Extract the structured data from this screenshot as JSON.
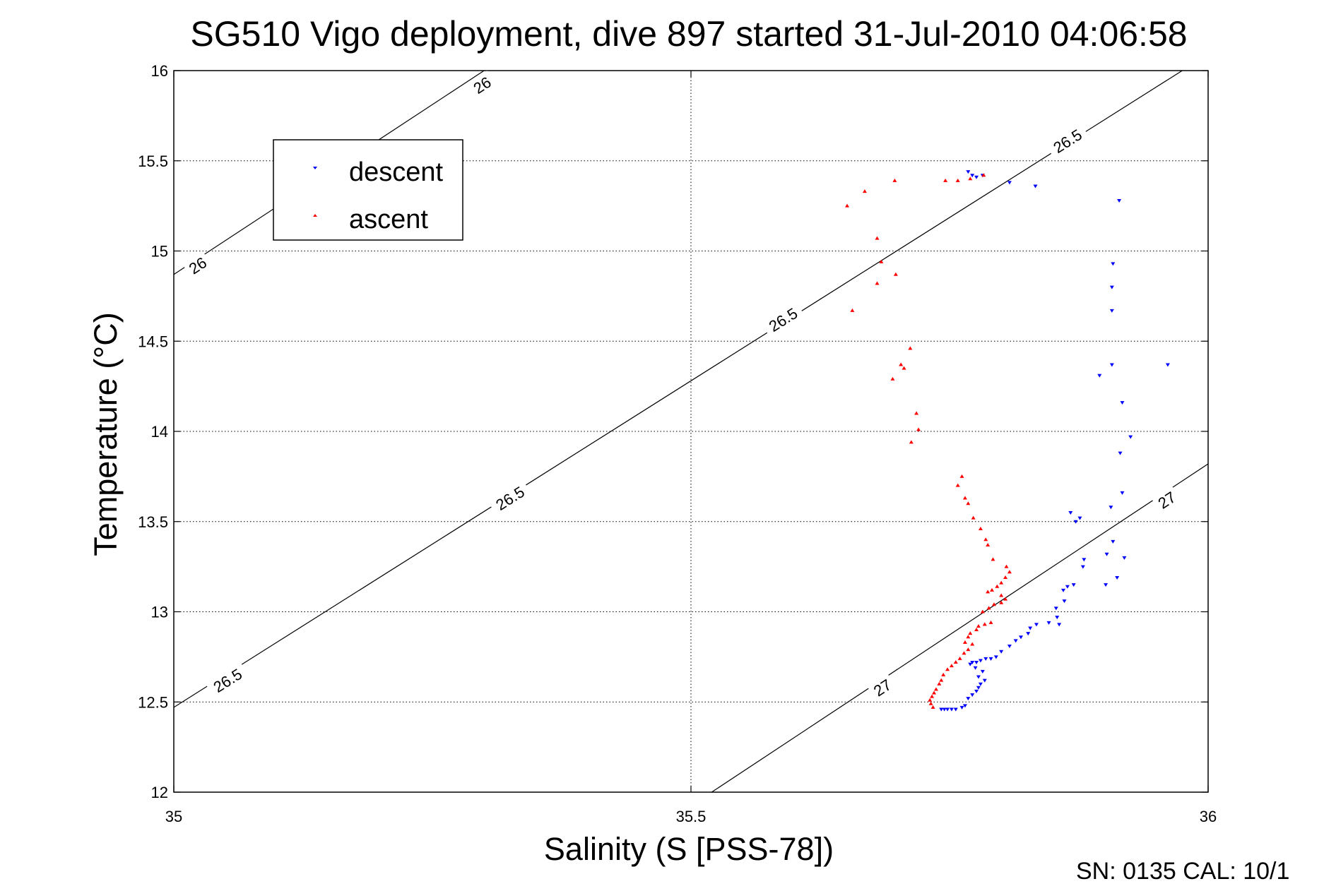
{
  "chart_data": {
    "type": "scatter",
    "title": "SG510 Vigo deployment, dive 897 started 31-Jul-2010 04:06:58",
    "xlabel": "Salinity (S [PSS-78])",
    "ylabel": "Temperature (°C)",
    "xlim": [
      35,
      36
    ],
    "ylim": [
      12,
      16
    ],
    "xticks": [
      "35",
      "35.5",
      "36"
    ],
    "yticks": [
      "12",
      "12.5",
      "13",
      "13.5",
      "14",
      "14.5",
      "15",
      "15.5",
      "16"
    ],
    "grid": true,
    "legend": {
      "position": "top-left"
    },
    "footer": "SN: 0135  CAL: 10/1",
    "density_isolines": [
      {
        "label": "26",
        "points": [
          [
            35.0,
            14.87
          ],
          [
            35.3,
            16.0
          ]
        ]
      },
      {
        "label": "26.5",
        "points": [
          [
            35.0,
            12.47
          ],
          [
            35.975,
            16.0
          ]
        ]
      },
      {
        "label": "27",
        "points": [
          [
            35.52,
            12.0
          ],
          [
            36.0,
            13.82
          ]
        ]
      }
    ],
    "isoline_labels": [
      {
        "text": "26",
        "x": 35.298,
        "y": 15.92
      },
      {
        "text": "26",
        "x": 35.023,
        "y": 14.92
      },
      {
        "text": "26.5",
        "x": 35.864,
        "y": 15.61
      },
      {
        "text": "26.5",
        "x": 35.589,
        "y": 14.62
      },
      {
        "text": "26.5",
        "x": 35.325,
        "y": 13.63
      },
      {
        "text": "26.5",
        "x": 35.052,
        "y": 12.62
      },
      {
        "text": "27",
        "x": 35.96,
        "y": 13.62
      },
      {
        "text": "27",
        "x": 35.685,
        "y": 12.58
      }
    ],
    "series": [
      {
        "name": "descent",
        "marker": "triangle-down",
        "color": "#0000ff",
        "points": [
          [
            35.768,
            15.44
          ],
          [
            35.772,
            15.42
          ],
          [
            35.776,
            15.41
          ],
          [
            35.782,
            15.42
          ],
          [
            35.808,
            15.38
          ],
          [
            35.833,
            15.36
          ],
          [
            35.914,
            15.28
          ],
          [
            35.908,
            14.93
          ],
          [
            35.907,
            14.8
          ],
          [
            35.907,
            14.67
          ],
          [
            35.907,
            14.37
          ],
          [
            35.895,
            14.31
          ],
          [
            35.961,
            14.37
          ],
          [
            35.917,
            14.16
          ],
          [
            35.925,
            13.97
          ],
          [
            35.915,
            13.88
          ],
          [
            35.917,
            13.66
          ],
          [
            35.906,
            13.58
          ],
          [
            35.867,
            13.55
          ],
          [
            35.876,
            13.52
          ],
          [
            35.872,
            13.5
          ],
          [
            35.908,
            13.39
          ],
          [
            35.919,
            13.3
          ],
          [
            35.902,
            13.32
          ],
          [
            35.88,
            13.29
          ],
          [
            35.879,
            13.25
          ],
          [
            35.87,
            13.15
          ],
          [
            35.864,
            13.14
          ],
          [
            35.86,
            13.12
          ],
          [
            35.912,
            13.19
          ],
          [
            35.901,
            13.15
          ],
          [
            35.861,
            13.06
          ],
          [
            35.853,
            13.02
          ],
          [
            35.854,
            12.97
          ],
          [
            35.856,
            12.93
          ],
          [
            35.846,
            12.94
          ],
          [
            35.834,
            12.93
          ],
          [
            35.828,
            12.91
          ],
          [
            35.826,
            12.88
          ],
          [
            35.819,
            12.86
          ],
          [
            35.814,
            12.84
          ],
          [
            35.808,
            12.81
          ],
          [
            35.8,
            12.78
          ],
          [
            35.795,
            12.75
          ],
          [
            35.79,
            12.74
          ],
          [
            35.785,
            12.74
          ],
          [
            35.78,
            12.73
          ],
          [
            35.776,
            12.72
          ],
          [
            35.772,
            12.72
          ],
          [
            35.77,
            12.71
          ],
          [
            35.775,
            12.69
          ],
          [
            35.782,
            12.67
          ],
          [
            35.778,
            12.64
          ],
          [
            35.784,
            12.62
          ],
          [
            35.78,
            12.6
          ],
          [
            35.778,
            12.58
          ],
          [
            35.776,
            12.56
          ],
          [
            35.772,
            12.54
          ],
          [
            35.768,
            12.52
          ],
          [
            35.765,
            12.48
          ],
          [
            35.762,
            12.47
          ],
          [
            35.756,
            12.46
          ],
          [
            35.752,
            12.46
          ],
          [
            35.748,
            12.46
          ],
          [
            35.745,
            12.46
          ],
          [
            35.742,
            12.46
          ]
        ]
      },
      {
        "name": "ascent",
        "marker": "triangle-up",
        "color": "#ff0000",
        "points": [
          [
            35.783,
            15.42
          ],
          [
            35.77,
            15.4
          ],
          [
            35.758,
            15.39
          ],
          [
            35.746,
            15.39
          ],
          [
            35.697,
            15.39
          ],
          [
            35.668,
            15.33
          ],
          [
            35.651,
            15.25
          ],
          [
            35.68,
            15.07
          ],
          [
            35.684,
            14.94
          ],
          [
            35.68,
            14.82
          ],
          [
            35.698,
            14.87
          ],
          [
            35.656,
            14.67
          ],
          [
            35.712,
            14.46
          ],
          [
            35.703,
            14.37
          ],
          [
            35.706,
            14.35
          ],
          [
            35.695,
            14.29
          ],
          [
            35.718,
            14.1
          ],
          [
            35.72,
            14.01
          ],
          [
            35.713,
            13.94
          ],
          [
            35.762,
            13.75
          ],
          [
            35.758,
            13.7
          ],
          [
            35.765,
            13.63
          ],
          [
            35.768,
            13.6
          ],
          [
            35.773,
            13.52
          ],
          [
            35.78,
            13.46
          ],
          [
            35.785,
            13.4
          ],
          [
            35.787,
            13.37
          ],
          [
            35.792,
            13.29
          ],
          [
            35.805,
            13.25
          ],
          [
            35.808,
            13.22
          ],
          [
            35.804,
            13.19
          ],
          [
            35.8,
            13.16
          ],
          [
            35.796,
            13.14
          ],
          [
            35.791,
            13.12
          ],
          [
            35.787,
            13.11
          ],
          [
            35.8,
            13.09
          ],
          [
            35.804,
            13.07
          ],
          [
            35.8,
            13.05
          ],
          [
            35.793,
            13.04
          ],
          [
            35.788,
            13.02
          ],
          [
            35.782,
            13.0
          ],
          [
            35.79,
            12.94
          ],
          [
            35.784,
            12.93
          ],
          [
            35.778,
            12.92
          ],
          [
            35.776,
            12.9
          ],
          [
            35.77,
            12.88
          ],
          [
            35.768,
            12.86
          ],
          [
            35.765,
            12.83
          ],
          [
            35.772,
            12.82
          ],
          [
            35.768,
            12.79
          ],
          [
            35.764,
            12.77
          ],
          [
            35.76,
            12.74
          ],
          [
            35.756,
            12.72
          ],
          [
            35.752,
            12.7
          ],
          [
            35.748,
            12.68
          ],
          [
            35.744,
            12.65
          ],
          [
            35.742,
            12.62
          ],
          [
            35.74,
            12.6
          ],
          [
            35.737,
            12.57
          ],
          [
            35.735,
            12.55
          ],
          [
            35.733,
            12.53
          ],
          [
            35.731,
            12.51
          ],
          [
            35.732,
            12.49
          ],
          [
            35.734,
            12.47
          ]
        ]
      }
    ]
  }
}
